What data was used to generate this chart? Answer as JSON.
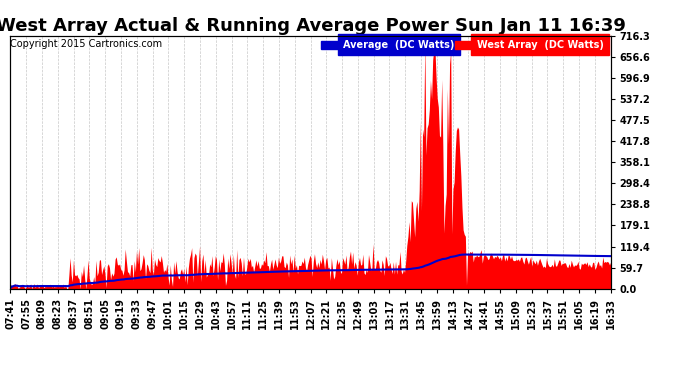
{
  "title": "West Array Actual & Running Average Power Sun Jan 11 16:39",
  "copyright": "Copyright 2015 Cartronics.com",
  "ylabel_right_ticks": [
    0.0,
    59.7,
    119.4,
    179.1,
    238.8,
    298.4,
    358.1,
    417.8,
    477.5,
    537.2,
    596.9,
    656.6,
    716.3
  ],
  "ylim": [
    0,
    716.3
  ],
  "background_color": "#ffffff",
  "plot_bg_color": "#ffffff",
  "grid_color": "#c8c8c8",
  "west_array_color": "#ff0000",
  "average_color": "#0000cc",
  "legend_avg_bg": "#0000cc",
  "legend_west_bg": "#ff0000",
  "legend_avg_text": "Average  (DC Watts)",
  "legend_west_text": "West Array  (DC Watts)",
  "title_fontsize": 13,
  "copyright_fontsize": 7,
  "tick_fontsize": 7,
  "x_tick_labels": [
    "07:41",
    "07:55",
    "08:09",
    "08:23",
    "08:37",
    "08:51",
    "09:05",
    "09:19",
    "09:33",
    "09:47",
    "10:01",
    "10:15",
    "10:29",
    "10:43",
    "10:57",
    "11:11",
    "11:25",
    "11:39",
    "11:53",
    "12:07",
    "12:21",
    "12:35",
    "12:49",
    "13:03",
    "13:17",
    "13:31",
    "13:45",
    "13:59",
    "14:13",
    "14:27",
    "14:41",
    "14:55",
    "15:09",
    "15:23",
    "15:37",
    "15:51",
    "16:05",
    "16:19",
    "16:33"
  ]
}
